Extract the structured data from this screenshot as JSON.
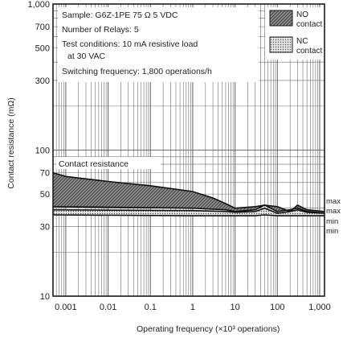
{
  "chart_data": {
    "type": "area",
    "title": "",
    "xlabel": "Operating frequency (×10³ operations)",
    "ylabel": "Contact resistance (mΩ)",
    "x_scale": "log",
    "y_scale": "log",
    "xlim": [
      0.0005,
      1300
    ],
    "ylim": [
      10,
      1000
    ],
    "x_ticks": [
      0.001,
      0.01,
      0.1,
      1,
      10,
      100,
      1000
    ],
    "x_tick_labels": [
      "0.001",
      "0.01",
      "0.1",
      "1",
      "10",
      "100",
      "1,000"
    ],
    "y_ticks": [
      10,
      30,
      50,
      70,
      100,
      300,
      500,
      700,
      1000
    ],
    "y_tick_labels": [
      "10",
      "30",
      "50",
      "70",
      "100",
      "300",
      "500",
      "700",
      "1,000"
    ],
    "grid": true,
    "annotations": [
      "Sample: G6Z-1PE  75 Ω  5 VDC",
      "Number of Relays: 5",
      "Test conditions: 10 mA resistive load",
      "at  30 VAC",
      "Switching frequency: 1,800 operations/h"
    ],
    "curve_label": "Contact resistance",
    "legend_position": "top-right",
    "series": [
      {
        "name": "NO contact",
        "pattern": "dark-hatched",
        "max": {
          "x": [
            0.0005,
            0.001,
            0.01,
            0.1,
            1,
            3,
            6,
            10,
            30,
            50,
            100,
            200,
            300,
            500,
            1300
          ],
          "y": [
            70,
            66,
            61,
            57,
            52,
            47,
            43,
            40,
            41,
            42,
            41,
            38,
            42,
            39,
            38
          ]
        },
        "min": {
          "x": [
            0.0005,
            1,
            6,
            10,
            30,
            50,
            100,
            200,
            300,
            500,
            1300
          ],
          "y": [
            41,
            40,
            39,
            38,
            39,
            42,
            38,
            39,
            40,
            38,
            37
          ]
        }
      },
      {
        "name": "NC contact",
        "pattern": "light-dotted",
        "max": {
          "x": [
            0.0005,
            1,
            6,
            10,
            30,
            50,
            100,
            200,
            300,
            500,
            1300
          ],
          "y": [
            39,
            38.5,
            38,
            37.5,
            38,
            40,
            37,
            38,
            39,
            37.5,
            37
          ]
        },
        "min": {
          "x": [
            0.0005,
            1,
            6,
            10,
            30,
            50,
            100,
            200,
            300,
            500,
            1300
          ],
          "y": [
            36,
            35.5,
            35.5,
            35.5,
            35.5,
            36,
            35.5,
            35.5,
            35.5,
            35.5,
            35.5
          ]
        }
      }
    ],
    "side_labels": [
      "max",
      "max",
      "min",
      "min"
    ]
  },
  "colors": {
    "grid": "#6f6f6f",
    "frame": "#1a1a1a",
    "no_band_fill": "#7d7d7d",
    "nc_band_fill": "#d6d6d6",
    "text": "#222222"
  }
}
